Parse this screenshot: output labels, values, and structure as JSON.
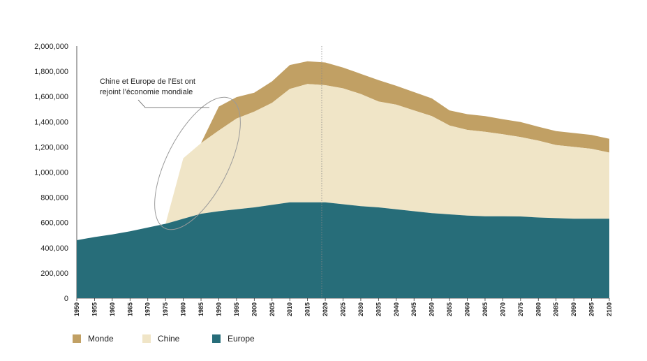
{
  "chart_data": {
    "type": "area",
    "stacked": true,
    "x": [
      1950,
      1955,
      1960,
      1965,
      1970,
      1975,
      1980,
      1985,
      1990,
      1995,
      2000,
      2005,
      2010,
      2015,
      2020,
      2025,
      2030,
      2035,
      2040,
      2045,
      2050,
      2055,
      2060,
      2065,
      2070,
      2075,
      2080,
      2085,
      2090,
      2095,
      2100
    ],
    "ylim": [
      0,
      2000000
    ],
    "yticks": [
      0,
      200000,
      400000,
      600000,
      800000,
      1000000,
      1200000,
      1400000,
      1600000,
      1800000,
      2000000
    ],
    "ytick_labels": [
      "0",
      "200,000",
      "400,000",
      "600,000",
      "800,000",
      "1,000,000",
      "1,200,000",
      "1,400,000",
      "1,600,000",
      "1,800,000",
      "2,000,000"
    ],
    "xtick_labels": [
      "1950",
      "1955",
      "1960",
      "1965",
      "1970",
      "1975",
      "1980",
      "1985",
      "1990",
      "1995",
      "2000",
      "2005",
      "2010",
      "2015",
      "2020",
      "2025",
      "2030",
      "2035",
      "2040",
      "2045",
      "2050",
      "2055",
      "2060",
      "2065",
      "2070",
      "2075",
      "2080",
      "2085",
      "2090",
      "2095",
      "2100"
    ],
    "series": [
      {
        "name": "Europe",
        "color": "#276d79",
        "values": [
          460000,
          485000,
          505000,
          530000,
          560000,
          590000,
          630000,
          670000,
          690000,
          705000,
          720000,
          740000,
          760000,
          760000,
          760000,
          745000,
          730000,
          720000,
          705000,
          690000,
          675000,
          665000,
          655000,
          650000,
          650000,
          648000,
          640000,
          635000,
          630000,
          630000,
          630000
        ]
      },
      {
        "name": "Chine",
        "color": "#f0e5c7",
        "values": [
          0,
          0,
          0,
          0,
          0,
          0,
          480000,
          560000,
          640000,
          720000,
          760000,
          810000,
          900000,
          940000,
          930000,
          920000,
          890000,
          840000,
          830000,
          800000,
          770000,
          705000,
          680000,
          670000,
          650000,
          630000,
          610000,
          580000,
          570000,
          555000,
          525000
        ]
      },
      {
        "name": "Monde",
        "color": "#c1a064",
        "values": [
          0,
          0,
          0,
          0,
          0,
          0,
          0,
          0,
          190000,
          170000,
          150000,
          170000,
          190000,
          180000,
          180000,
          165000,
          160000,
          170000,
          150000,
          145000,
          140000,
          120000,
          125000,
          125000,
          120000,
          120000,
          110000,
          110000,
          110000,
          110000,
          110000
        ]
      }
    ],
    "annotation": {
      "lines": [
        "Chine et Europe de l’Est ont",
        "rejoint l’économie mondiale"
      ]
    },
    "reference_year": 2019,
    "legend": {
      "placement": "bottom-left",
      "order": [
        "Monde",
        "Chine",
        "Europe"
      ]
    }
  }
}
